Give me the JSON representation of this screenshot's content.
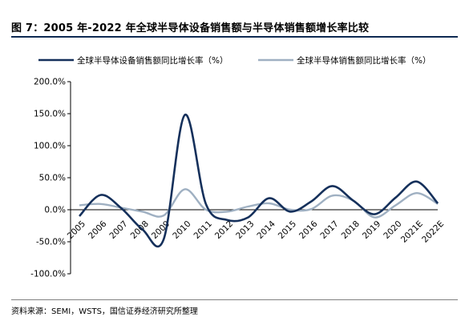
{
  "header": {
    "title": "图 7：2005 年-2022 年全球半导体设备销售额与半导体销售额增长率比较"
  },
  "footer": {
    "source": "资料来源：SEMI，WSTS，国信证券经济研究所整理"
  },
  "colors": {
    "series1": "#15305b",
    "series2": "#9fb0c2",
    "axis": "#000000"
  },
  "chart_data": {
    "type": "line",
    "categories": [
      "2005",
      "2006",
      "2007",
      "2008",
      "2009",
      "2010",
      "2011",
      "2012",
      "2013",
      "2014",
      "2015",
      "2016",
      "2017",
      "2018",
      "2019",
      "2020",
      "2021E",
      "2022E"
    ],
    "series": [
      {
        "name": "全球半导体设备销售额同比增长率（%）",
        "values": [
          -10,
          23,
          2,
          -31,
          -46,
          148,
          9,
          -16,
          -12,
          18,
          -3,
          13,
          37,
          14,
          -7,
          19,
          44,
          10
        ]
      },
      {
        "name": "全球半导体销售额同比增长率（%）",
        "values": [
          7,
          9,
          3,
          -3,
          -9,
          32,
          0,
          -3,
          5,
          10,
          0,
          1,
          22,
          14,
          -12,
          7,
          26,
          9
        ]
      }
    ],
    "yticks": [
      "200.0%",
      "150.0%",
      "100.0%",
      "50.0%",
      "0.0%",
      "-50.0%",
      "-100.0%"
    ],
    "ylim": [
      -100,
      200
    ],
    "grid": false,
    "legend_position": "top"
  }
}
